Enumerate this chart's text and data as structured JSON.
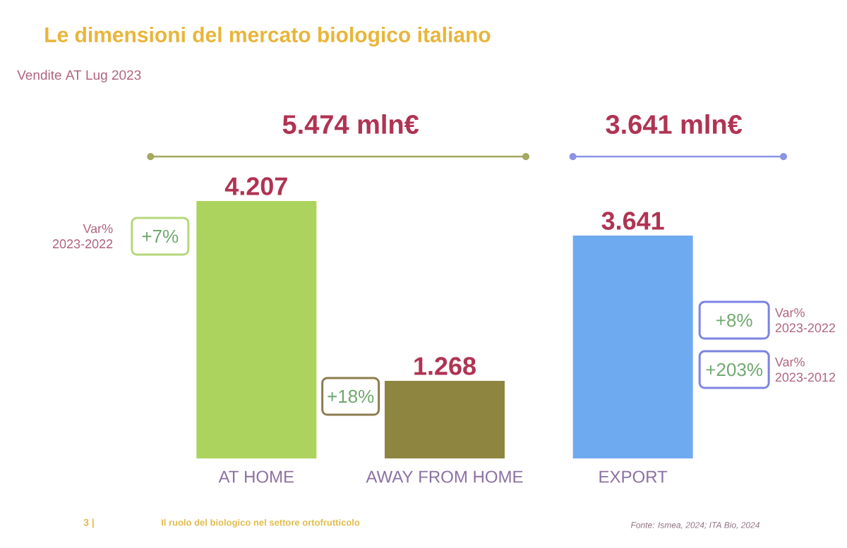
{
  "chart_data": {
    "type": "bar",
    "title": "Le dimensioni del mercato biologico italiano",
    "subtitle": "Vendite AT Lug 2023",
    "categories": [
      "AT HOME",
      "AWAY FROM HOME",
      "EXPORT"
    ],
    "values": [
      4.207,
      1.268,
      3.641
    ],
    "value_labels": [
      "4.207",
      "1.268",
      "3.641"
    ],
    "colors": [
      "#acd35e",
      "#8e8640",
      "#6eaaf0"
    ],
    "tick_labels": "x",
    "annotations": [
      "5.474 mln€",
      "3.641 mln€",
      "Var% 2023-2022",
      "+7%",
      "+18%",
      "+8%",
      "Var% 2023-2022",
      "+203%",
      "Var% 2023-2012",
      "3 |",
      "Il ruolo del biologico nel settore ortofrutticolo",
      "Fonte: Ismea, 2024; ITA Bio, 2024"
    ]
  }
}
